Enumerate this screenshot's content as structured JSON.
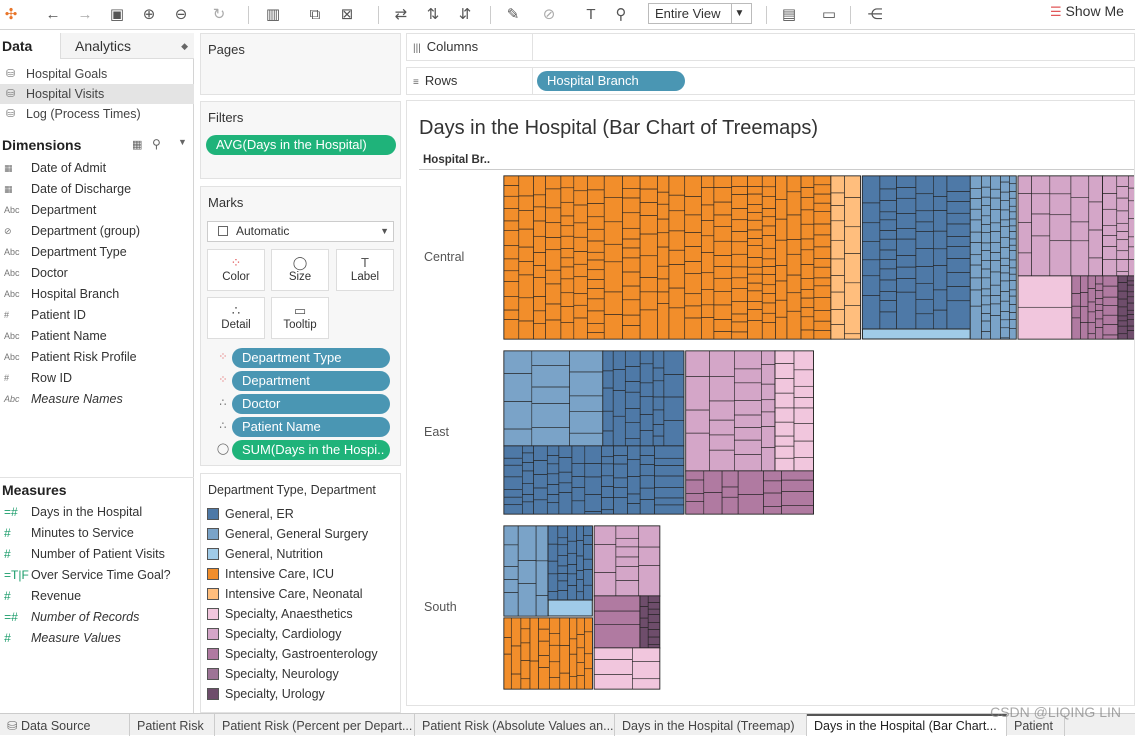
{
  "toolbar": {
    "view_label": "Entire View",
    "show_me_label": "Show Me"
  },
  "data_pane": {
    "tab_data": "Data",
    "tab_analytics": "Analytics",
    "datasources": [
      "Hospital Goals",
      "Hospital Visits",
      "Log (Process Times)"
    ],
    "dimensions_label": "Dimensions",
    "dimensions": [
      {
        "icon": "calendar-icon",
        "glyph": "▦",
        "label": "Date of Admit"
      },
      {
        "icon": "calendar-icon",
        "glyph": "▦",
        "label": "Date of Discharge"
      },
      {
        "icon": "abc-icon",
        "glyph": "Abc",
        "label": "Department"
      },
      {
        "icon": "paperclip-icon",
        "glyph": "⊘",
        "label": "Department (group)"
      },
      {
        "icon": "abc-icon",
        "glyph": "Abc",
        "label": "Department Type"
      },
      {
        "icon": "abc-icon",
        "glyph": "Abc",
        "label": "Doctor"
      },
      {
        "icon": "abc-icon",
        "glyph": "Abc",
        "label": "Hospital Branch"
      },
      {
        "icon": "hash-icon",
        "glyph": "#",
        "label": "Patient ID"
      },
      {
        "icon": "abc-icon",
        "glyph": "Abc",
        "label": "Patient Name"
      },
      {
        "icon": "abc-icon",
        "glyph": "Abc",
        "label": "Patient Risk Profile"
      },
      {
        "icon": "hash-icon",
        "glyph": "#",
        "label": "Row ID"
      },
      {
        "icon": "abc-icon",
        "glyph": "Abc",
        "label": "Measure Names"
      }
    ],
    "measures_label": "Measures",
    "measures": [
      {
        "icon": "calc-hash-icon",
        "glyph": "=#",
        "label": "Days in the Hospital"
      },
      {
        "icon": "hash-icon",
        "glyph": "#",
        "label": "Minutes to Service"
      },
      {
        "icon": "hash-icon",
        "glyph": "#",
        "label": "Number of Patient Visits"
      },
      {
        "icon": "calc-tf-icon",
        "glyph": "=T|F",
        "label": "Over Service Time Goal?"
      },
      {
        "icon": "hash-icon",
        "glyph": "#",
        "label": "Revenue"
      },
      {
        "icon": "calc-hash-icon",
        "glyph": "=#",
        "label": "Number of Records"
      },
      {
        "icon": "hash-icon",
        "glyph": "#",
        "label": "Measure Values"
      }
    ]
  },
  "cards": {
    "pages_label": "Pages",
    "filters_label": "Filters",
    "filter_pill": "AVG(Days in the Hospital)",
    "marks_label": "Marks",
    "mark_type": "Automatic",
    "mark_buttons": [
      "Color",
      "Size",
      "Label",
      "Detail",
      "Tooltip"
    ],
    "mark_pills": [
      {
        "icon": "color-icon",
        "label": "Department Type",
        "kind": "blue"
      },
      {
        "icon": "color-icon",
        "label": "Department",
        "kind": "blue"
      },
      {
        "icon": "detail-icon",
        "label": "Doctor",
        "kind": "blue"
      },
      {
        "icon": "detail-icon",
        "label": "Patient Name",
        "kind": "blue"
      },
      {
        "icon": "size-icon",
        "label": "SUM(Days in the Hospi..",
        "kind": "green"
      }
    ],
    "legend_title": "Department Type, Department",
    "legend": [
      {
        "label": "General, ER",
        "color": "#4e79a7"
      },
      {
        "label": "General, General Surgery",
        "color": "#7aa3c8"
      },
      {
        "label": "General, Nutrition",
        "color": "#a0cbe8"
      },
      {
        "label": "Intensive Care, ICU",
        "color": "#f28e2b"
      },
      {
        "label": "Intensive Care, Neonatal",
        "color": "#ffbe7d"
      },
      {
        "label": "Specialty, Anaesthetics",
        "color": "#f1c6dd"
      },
      {
        "label": "Specialty, Cardiology",
        "color": "#d4a6c8"
      },
      {
        "label": "Specialty, Gastroenterology",
        "color": "#b07aa1"
      },
      {
        "label": "Specialty, Neurology",
        "color": "#9d7496"
      },
      {
        "label": "Specialty, Urology",
        "color": "#6e4d6b"
      }
    ]
  },
  "shelves": {
    "columns_label": "Columns",
    "rows_label": "Rows",
    "rows_pill": "Hospital Branch"
  },
  "viz": {
    "title": "Days in the Hospital (Bar Chart of Treemaps)",
    "column_header": "Hospital Br..",
    "rows": [
      "Central",
      "East",
      "South"
    ]
  },
  "chart_data": {
    "type": "bar",
    "title": "Days in the Hospital (Bar Chart of Treemaps)",
    "categories": [
      "Central",
      "East",
      "South"
    ],
    "series": [
      {
        "name": "Intensive Care, ICU",
        "values": [
          100,
          0,
          54
        ]
      },
      {
        "name": "Intensive Care, Neonatal",
        "values": [
          9,
          0,
          0
        ]
      },
      {
        "name": "General, ER",
        "values": [
          33,
          55,
          27
        ]
      },
      {
        "name": "General, General Surgery",
        "values": [
          14,
          0,
          27
        ]
      },
      {
        "name": "Specialty",
        "values": [
          47,
          39,
          20
        ]
      }
    ]
  },
  "bottom_tabs": [
    "Data Source",
    "Patient Risk",
    "Patient Risk (Percent per Depart...",
    "Patient Risk (Absolute Values an...",
    "Days in the Hospital (Treemap)",
    "Days in the Hospital (Bar Chart...",
    "Patient"
  ],
  "watermark": "CSDN @LIQING LIN"
}
